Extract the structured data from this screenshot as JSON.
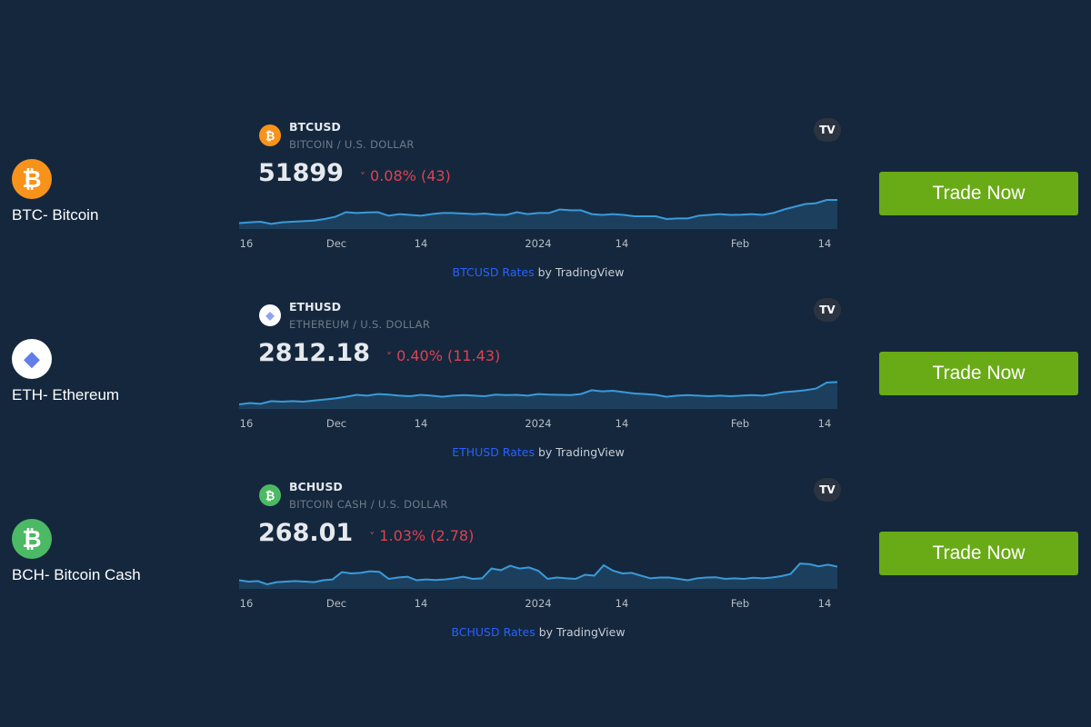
{
  "rows": [
    {
      "coin_label": "BTC- Bitcoin",
      "icon": "bitcoin-icon",
      "icon_glyph": "₿",
      "icon_color": "#f7931a",
      "symbol": "BTCUSD",
      "description": "BITCOIN / U.S. DOLLAR",
      "price": "51899",
      "change": "0.08% (43)",
      "change_direction": "down",
      "chevron": "˅",
      "tv_logo": "TV",
      "ticks": [
        "16",
        "Dec",
        "14",
        "2024",
        "14",
        "Feb",
        "14"
      ],
      "attribution_link": "BTCUSD Rates",
      "attribution_suffix": " by TradingView",
      "trade_label": "Trade Now"
    },
    {
      "coin_label": "ETH- Ethereum",
      "icon": "ethereum-icon",
      "icon_glyph": "◆",
      "icon_color": "#ffffff",
      "symbol": "ETHUSD",
      "description": "ETHEREUM / U.S. DOLLAR",
      "price": "2812.18",
      "change": "0.40% (11.43)",
      "change_direction": "down",
      "chevron": "˅",
      "tv_logo": "TV",
      "ticks": [
        "16",
        "Dec",
        "14",
        "2024",
        "14",
        "Feb",
        "14"
      ],
      "attribution_link": "ETHUSD Rates",
      "attribution_suffix": " by TradingView",
      "trade_label": "Trade Now"
    },
    {
      "coin_label": "BCH- Bitcoin Cash",
      "icon": "bitcoin-cash-icon",
      "icon_glyph": "₿",
      "icon_color": "#4cb964",
      "symbol": "BCHUSD",
      "description": "BITCOIN CASH / U.S. DOLLAR",
      "price": "268.01",
      "change": "1.03% (2.78)",
      "change_direction": "down",
      "chevron": "˅",
      "tv_logo": "TV",
      "ticks": [
        "16",
        "Dec",
        "14",
        "2024",
        "14",
        "Feb",
        "14"
      ],
      "attribution_link": "BCHUSD Rates",
      "attribution_suffix": " by TradingView",
      "trade_label": "Trade Now"
    }
  ],
  "colors": {
    "background": "#14273d",
    "negative": "#e0414f",
    "line": "#3a9ad9",
    "button": "#69ab16",
    "link": "#2962ff"
  },
  "chart_data": [
    {
      "type": "area",
      "symbol": "BTCUSD",
      "x_ticks": [
        "16",
        "Dec",
        "14",
        "2024",
        "14",
        "Feb",
        "14"
      ],
      "values": [
        15,
        18,
        20,
        12,
        18,
        20,
        22,
        24,
        30,
        38,
        55,
        52,
        54,
        55,
        42,
        48,
        45,
        42,
        48,
        52,
        52,
        50,
        48,
        50,
        46,
        45,
        55,
        48,
        52,
        52,
        65,
        62,
        62,
        48,
        45,
        48,
        45,
        40,
        40,
        40,
        30,
        32,
        32,
        42,
        45,
        48,
        45,
        46,
        48,
        45,
        52,
        65,
        75,
        85,
        88,
        100,
        100
      ]
    },
    {
      "type": "area",
      "symbol": "ETHUSD",
      "x_ticks": [
        "16",
        "Dec",
        "14",
        "2024",
        "14",
        "Feb",
        "14"
      ],
      "values": [
        10,
        15,
        12,
        22,
        20,
        22,
        20,
        24,
        28,
        32,
        38,
        45,
        42,
        48,
        46,
        42,
        40,
        45,
        42,
        38,
        42,
        44,
        42,
        40,
        46,
        44,
        45,
        42,
        48,
        46,
        45,
        44,
        48,
        62,
        58,
        60,
        55,
        50,
        48,
        45,
        38,
        42,
        44,
        42,
        40,
        42,
        40,
        42,
        44,
        42,
        48,
        55,
        58,
        62,
        68,
        90,
        92
      ]
    },
    {
      "type": "area",
      "symbol": "BCHUSD",
      "x_ticks": [
        "16",
        "Dec",
        "14",
        "2024",
        "14",
        "Feb",
        "14"
      ],
      "values": [
        25,
        20,
        22,
        10,
        18,
        20,
        22,
        20,
        18,
        25,
        28,
        55,
        50,
        52,
        58,
        56,
        30,
        35,
        38,
        25,
        28,
        26,
        28,
        32,
        38,
        30,
        32,
        68,
        62,
        78,
        68,
        72,
        60,
        30,
        35,
        32,
        30,
        45,
        42,
        80,
        60,
        50,
        52,
        42,
        32,
        35,
        35,
        30,
        25,
        32,
        35,
        36,
        30,
        32,
        30,
        34,
        32,
        35,
        40,
        48,
        86,
        84,
        76,
        82,
        75
      ]
    }
  ]
}
